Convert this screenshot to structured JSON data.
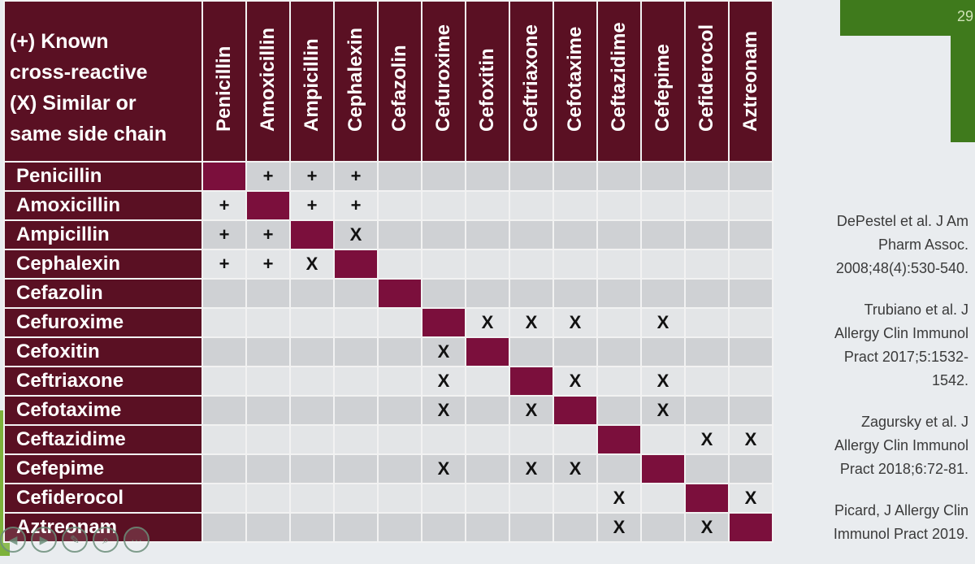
{
  "slide": {
    "page_number": "29"
  },
  "legend": {
    "line1": "(+) Known",
    "line2": "cross-reactive",
    "line3": "(X) Similar or",
    "line4": "same side chain"
  },
  "drugs": [
    "Penicillin",
    "Amoxicillin",
    "Ampicillin",
    "Cephalexin",
    "Cefazolin",
    "Cefuroxime",
    "Cefoxitin",
    "Ceftriaxone",
    "Cefotaxime",
    "Ceftazidime",
    "Cefepime",
    "Cefiderocol",
    "Aztreonam"
  ],
  "matrix": [
    [
      "#",
      "+",
      "+",
      "+",
      "",
      "",
      "",
      "",
      "",
      "",
      "",
      "",
      ""
    ],
    [
      "+",
      "#",
      "+",
      "+",
      "",
      "",
      "",
      "",
      "",
      "",
      "",
      "",
      ""
    ],
    [
      "+",
      "+",
      "#",
      "X",
      "",
      "",
      "",
      "",
      "",
      "",
      "",
      "",
      ""
    ],
    [
      "+",
      "+",
      "X",
      "#",
      "",
      "",
      "",
      "",
      "",
      "",
      "",
      "",
      ""
    ],
    [
      "",
      "",
      "",
      "",
      "#",
      "",
      "",
      "",
      "",
      "",
      "",
      "",
      ""
    ],
    [
      "",
      "",
      "",
      "",
      "",
      "#",
      "X",
      "X",
      "X",
      "",
      "X",
      "",
      ""
    ],
    [
      "",
      "",
      "",
      "",
      "",
      "X",
      "#",
      "",
      "",
      "",
      "",
      "",
      ""
    ],
    [
      "",
      "",
      "",
      "",
      "",
      "X",
      "",
      "#",
      "X",
      "",
      "X",
      "",
      ""
    ],
    [
      "",
      "",
      "",
      "",
      "",
      "X",
      "",
      "X",
      "#",
      "",
      "X",
      "",
      ""
    ],
    [
      "",
      "",
      "",
      "",
      "",
      "",
      "",
      "",
      "",
      "#",
      "",
      "X",
      "X"
    ],
    [
      "",
      "",
      "",
      "",
      "",
      "X",
      "",
      "X",
      "X",
      "",
      "#",
      "",
      ""
    ],
    [
      "",
      "",
      "",
      "",
      "",
      "",
      "",
      "",
      "",
      "X",
      "",
      "#",
      "X"
    ],
    [
      "",
      "",
      "",
      "",
      "",
      "",
      "",
      "",
      "",
      "X",
      "",
      "X",
      "#"
    ]
  ],
  "references": [
    {
      "lines": [
        "DePestel et al. J Am",
        "Pharm Assoc.",
        "2008;48(4):530-540."
      ]
    },
    {
      "lines": [
        "Trubiano et al. J",
        "Allergy Clin Immunol",
        "Pract 2017;5:1532-",
        "1542."
      ]
    },
    {
      "lines": [
        "Zagursky et al. J",
        "Allergy Clin Immunol",
        "Pract 2018;6:72-81."
      ]
    },
    {
      "lines": [
        "Picard, J Allergy Clin",
        "Immunol Pract 2019."
      ]
    }
  ],
  "controls": {
    "prev": "◀",
    "next": "▶",
    "pen": "✎",
    "zoom": "⌕",
    "more": "···",
    "icons": [
      "previous-slide-icon",
      "next-slide-icon",
      "pen-icon",
      "zoom-icon",
      "more-icon"
    ]
  }
}
